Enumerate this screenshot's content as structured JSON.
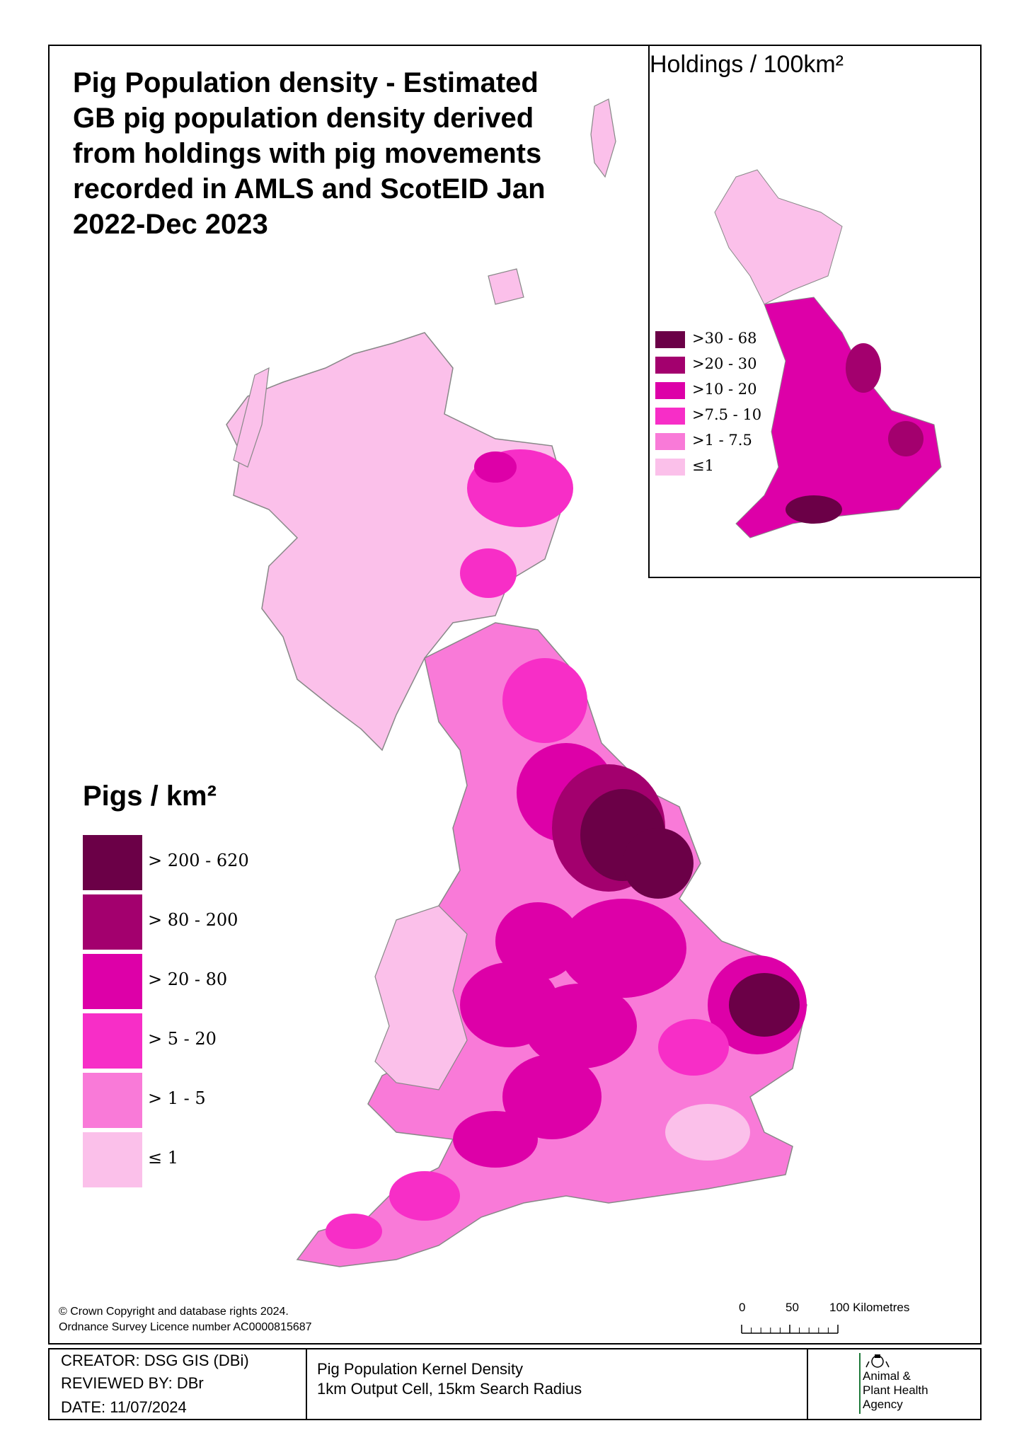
{
  "title": "Pig Population density - Estimated GB pig population density derived from holdings with pig movements recorded in AMLS and ScotEID Jan 2022-Dec 2023",
  "main_legend": {
    "title": "Pigs / km²",
    "items": [
      {
        "label": "> 200 - 620",
        "color": "#6b0047"
      },
      {
        "label": "> 80 - 200",
        "color": "#a3006e"
      },
      {
        "label": "> 20 - 80",
        "color": "#dd00a8"
      },
      {
        "label": "> 5 - 20",
        "color": "#f72ec7"
      },
      {
        "label": "> 1 - 5",
        "color": "#f97ad8"
      },
      {
        "label": "≤ 1",
        "color": "#fbc0ea"
      }
    ]
  },
  "inset": {
    "title": "Holdings / 100km²",
    "legend": [
      {
        "label": ">30 - 68",
        "color": "#6b0047"
      },
      {
        "label": ">20 - 30",
        "color": "#a3006e"
      },
      {
        "label": ">10 - 20",
        "color": "#dd00a8"
      },
      {
        "label": ">7.5 - 10",
        "color": "#f72ec7"
      },
      {
        "label": ">1 - 7.5",
        "color": "#f97ad8"
      },
      {
        "label": "≤1",
        "color": "#fbc0ea"
      }
    ]
  },
  "copyright": {
    "line1": "© Crown Copyright and database rights 2024.",
    "line2": "Ordnance Survey Licence number AC0000815687"
  },
  "scale": {
    "ticks": [
      "0",
      "50",
      "100 Kilometres"
    ]
  },
  "footer": {
    "creator": "CREATOR: DSG GIS (DBi)",
    "reviewed": "REVIEWED BY: DBr",
    "date": "DATE: 11/07/2024",
    "desc_line1": "Pig Population Kernel Density",
    "desc_line2": "1km Output Cell, 15km Search Radius",
    "agency_line1": "Animal &",
    "agency_line2": "Plant Health",
    "agency_line3": "Agency"
  }
}
